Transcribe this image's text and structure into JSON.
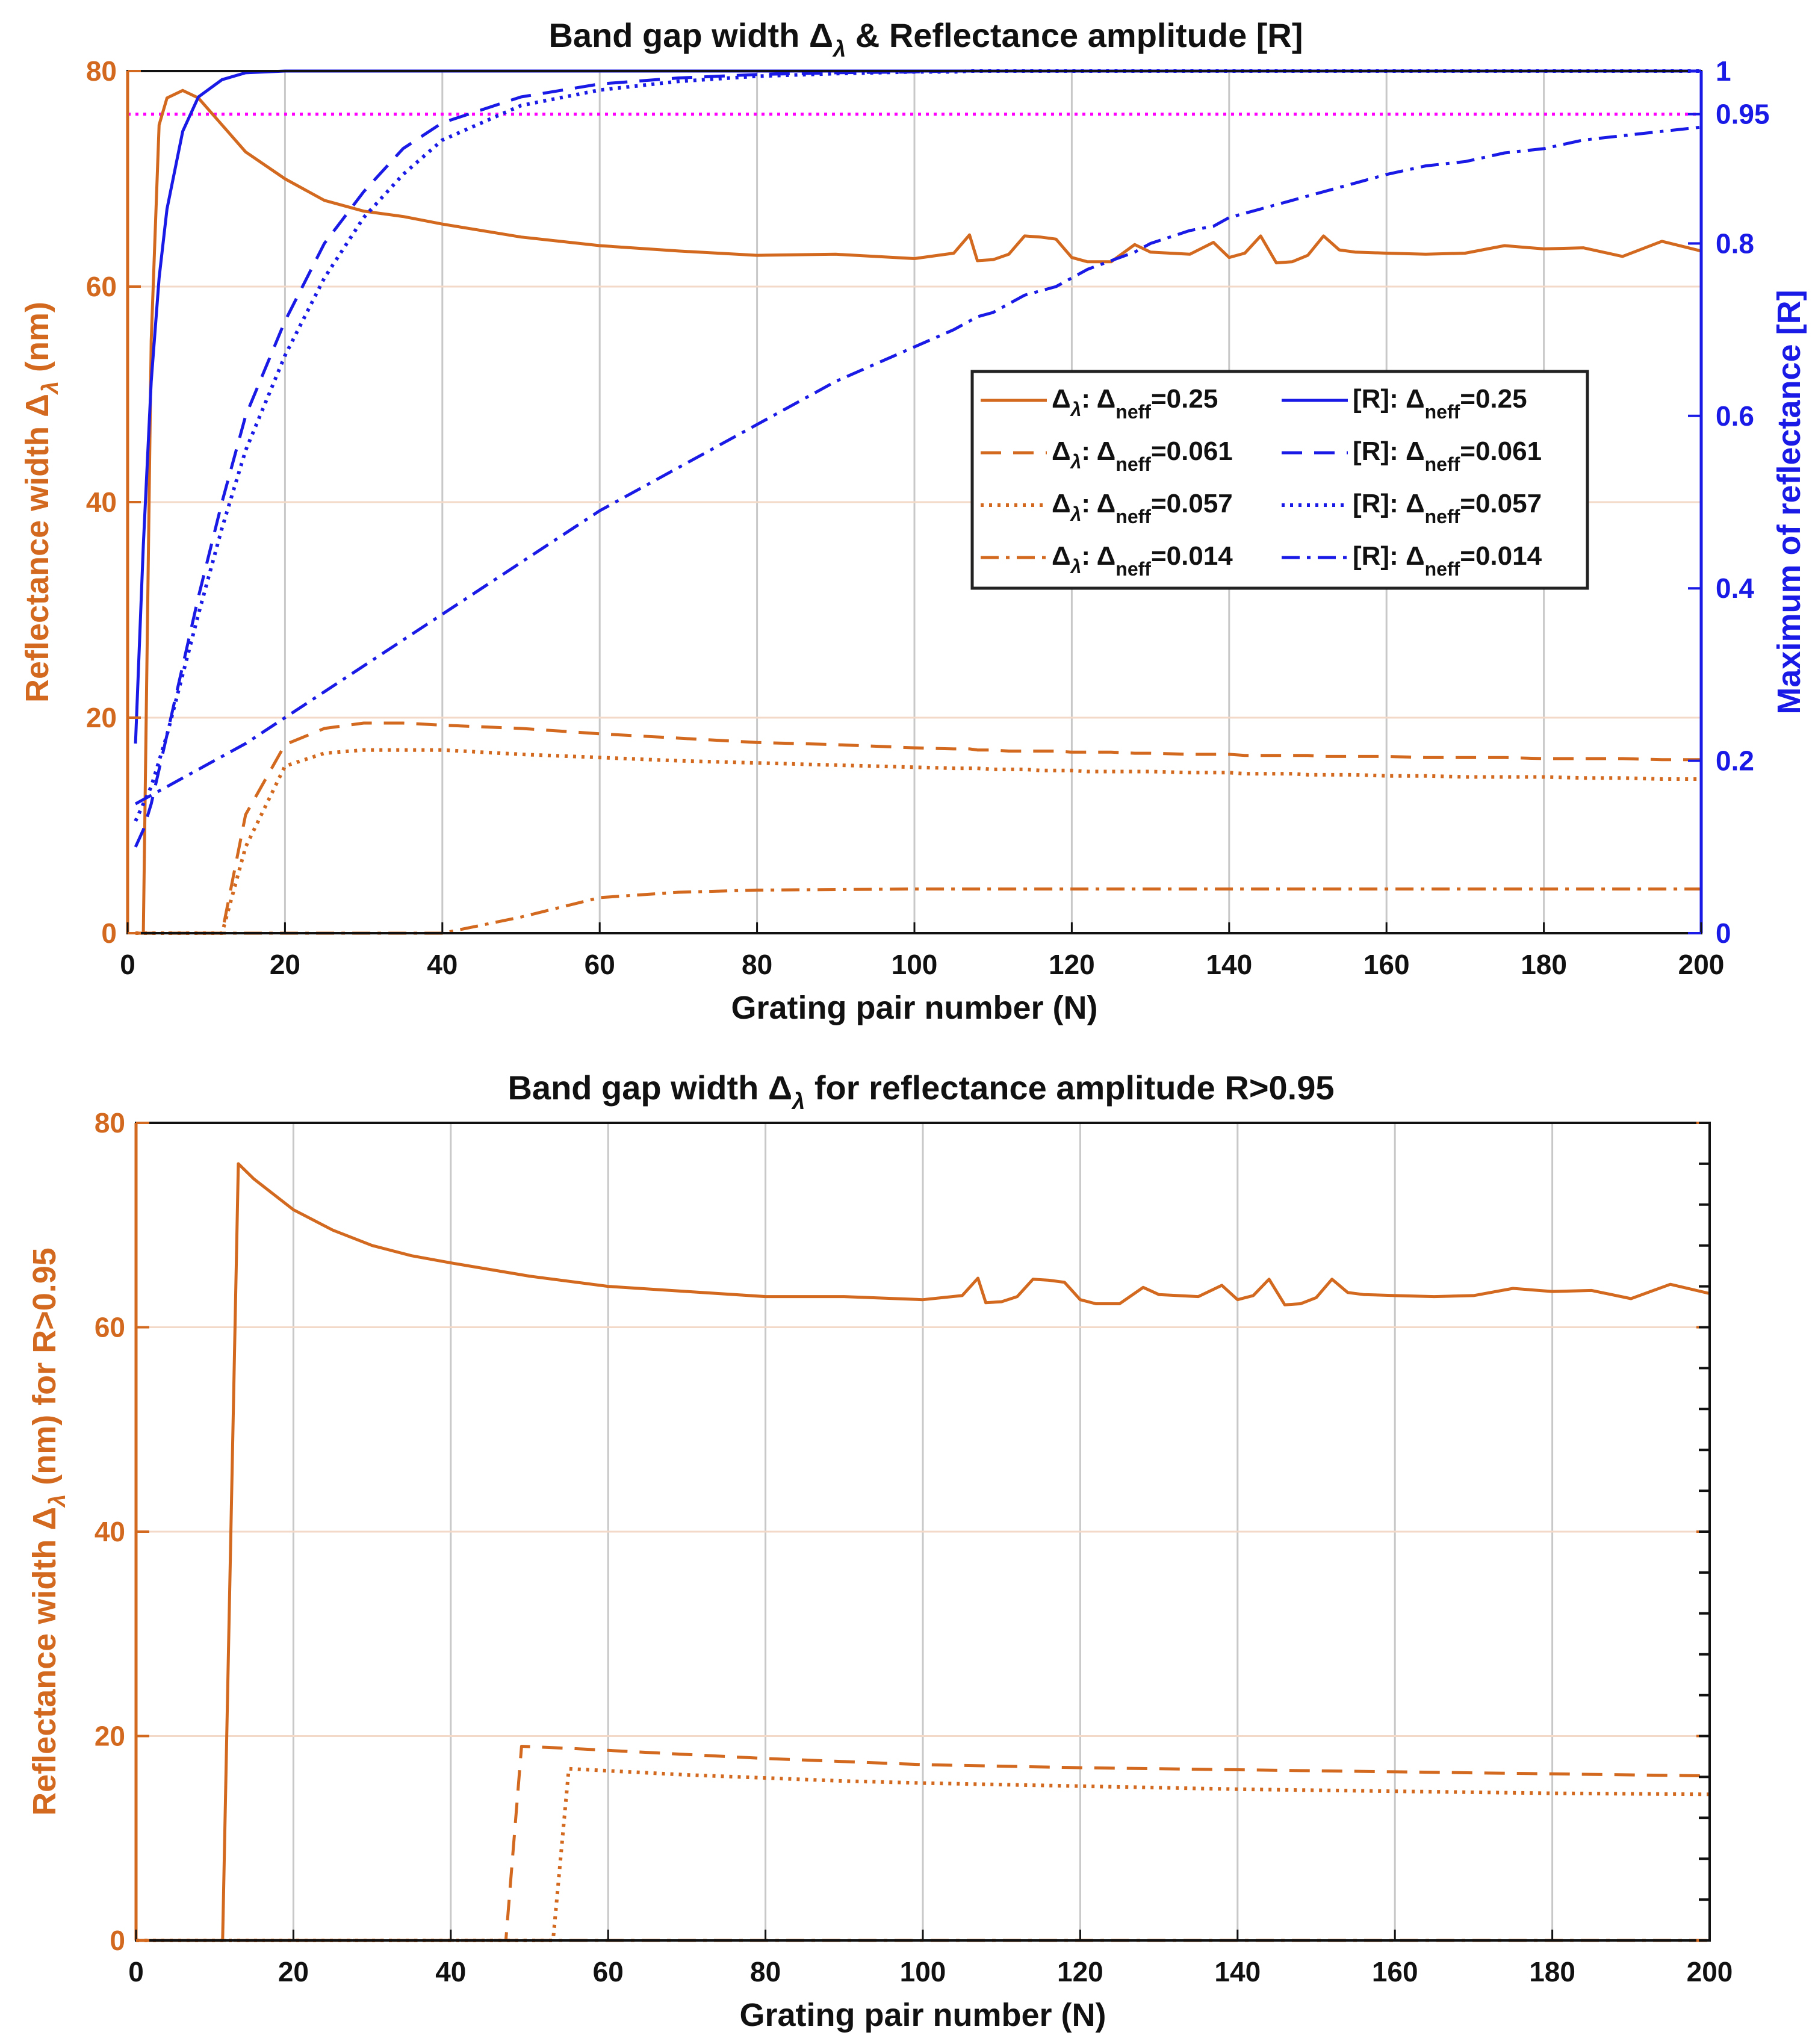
{
  "colors": {
    "orange": "#d2691e",
    "blue": "#1a1ae6",
    "magenta": "#ff00ff",
    "grid": "#c8c8c8",
    "gridH": "#f2d9c8"
  },
  "chart_data": [
    {
      "type": "line",
      "title_prefix": "Band gap width ",
      "title_symbol": "Δ",
      "title_sub": "λ",
      "title_suffix": " & Reflectance amplitude [R]",
      "xlabel": "Grating pair number (N)",
      "ylabel_left_prefix": "Reflectance width ",
      "ylabel_left_symbol": "Δ",
      "ylabel_left_sub": "λ",
      "ylabel_left_suffix": " (nm)",
      "ylabel_right": "Maximum of reflectance [R]",
      "xlim": [
        0,
        200
      ],
      "ylim_left": [
        0,
        80
      ],
      "ylim_right": [
        0,
        1
      ],
      "xticks": [
        "0",
        "20",
        "40",
        "60",
        "80",
        "100",
        "120",
        "140",
        "160",
        "180",
        "200"
      ],
      "yticks_left": [
        "0",
        "20",
        "40",
        "60",
        "80"
      ],
      "yticks_right": [
        "0",
        "0.2",
        "0.4",
        "0.6",
        "0.8",
        "0.95",
        "1"
      ],
      "threshold_R": 0.95,
      "x": [
        1,
        2,
        3,
        4,
        5,
        7,
        9,
        12,
        15,
        20,
        25,
        30,
        35,
        40,
        50,
        60,
        70,
        80,
        90,
        100,
        105,
        107,
        108,
        110,
        112,
        114,
        116,
        118,
        120,
        122,
        125,
        128,
        130,
        135,
        138,
        140,
        142,
        144,
        146,
        148,
        150,
        152,
        154,
        156,
        160,
        165,
        170,
        175,
        180,
        185,
        190,
        195,
        200
      ],
      "series": [
        {
          "name": "Δλ: Δneff=0.25",
          "axis": "left",
          "style": "solid",
          "color": "#d2691e",
          "values": [
            0,
            0,
            55,
            75,
            77.5,
            78.2,
            77.5,
            75,
            72.5,
            70,
            68,
            67,
            66.5,
            65.8,
            64.6,
            63.8,
            63.3,
            62.9,
            63,
            62.6,
            63.1,
            64.8,
            62.4,
            62.5,
            63,
            64.7,
            64.6,
            64.4,
            62.7,
            62.3,
            62.3,
            63.9,
            63.2,
            63,
            64.1,
            62.7,
            63.1,
            64.7,
            62.2,
            62.3,
            62.9,
            64.7,
            63.4,
            63.2,
            63.1,
            63,
            63.1,
            63.8,
            63.5,
            63.6,
            62.8,
            64.2,
            63.3
          ]
        },
        {
          "name": "Δλ: Δneff=0.061",
          "axis": "left",
          "style": "dashed",
          "color": "#d2691e",
          "values": [
            0,
            0,
            0,
            0,
            0,
            0,
            0,
            0,
            11,
            17.5,
            19,
            19.5,
            19.5,
            19.3,
            19,
            18.5,
            18.1,
            17.7,
            17.5,
            17.2,
            17.1,
            17.1,
            17,
            17,
            16.9,
            16.9,
            16.9,
            16.9,
            16.8,
            16.8,
            16.8,
            16.7,
            16.7,
            16.6,
            16.6,
            16.6,
            16.5,
            16.5,
            16.5,
            16.5,
            16.5,
            16.4,
            16.4,
            16.4,
            16.4,
            16.3,
            16.3,
            16.3,
            16.2,
            16.2,
            16.2,
            16.1,
            16.1
          ]
        },
        {
          "name": "Δλ: Δneff=0.057",
          "axis": "left",
          "style": "dotted",
          "color": "#d2691e",
          "values": [
            0,
            0,
            0,
            0,
            0,
            0,
            0,
            0,
            8,
            15.5,
            16.7,
            17,
            17,
            17,
            16.6,
            16.3,
            16,
            15.8,
            15.6,
            15.4,
            15.3,
            15.3,
            15.3,
            15.2,
            15.2,
            15.2,
            15.1,
            15.1,
            15.1,
            15,
            15,
            15,
            15,
            14.9,
            14.9,
            14.9,
            14.8,
            14.8,
            14.8,
            14.8,
            14.7,
            14.7,
            14.7,
            14.7,
            14.6,
            14.6,
            14.5,
            14.5,
            14.5,
            14.4,
            14.4,
            14.3,
            14.3
          ]
        },
        {
          "name": "Δλ: Δneff=0.014",
          "axis": "left",
          "style": "dashdot",
          "color": "#d2691e",
          "values": [
            0,
            0,
            0,
            0,
            0,
            0,
            0,
            0,
            0,
            0,
            0,
            0,
            0,
            0,
            1.5,
            3.3,
            3.8,
            4,
            4.05,
            4.1,
            4.1,
            4.1,
            4.1,
            4.1,
            4.1,
            4.1,
            4.1,
            4.1,
            4.1,
            4.1,
            4.1,
            4.1,
            4.1,
            4.1,
            4.1,
            4.1,
            4.1,
            4.1,
            4.1,
            4.1,
            4.1,
            4.1,
            4.1,
            4.1,
            4.1,
            4.1,
            4.1,
            4.1,
            4.1,
            4.1,
            4.1,
            4.1,
            4.1
          ]
        },
        {
          "name": "[R]: Δneff=0.25",
          "axis": "right",
          "style": "solid",
          "color": "#1a1ae6",
          "values": [
            0.22,
            0.45,
            0.64,
            0.76,
            0.84,
            0.93,
            0.97,
            0.99,
            0.998,
            1,
            1,
            1,
            1,
            1,
            1,
            1,
            1,
            1,
            1,
            1,
            1,
            1,
            1,
            1,
            1,
            1,
            1,
            1,
            1,
            1,
            1,
            1,
            1,
            1,
            1,
            1,
            1,
            1,
            1,
            1,
            1,
            1,
            1,
            1,
            1,
            1,
            1,
            1,
            1,
            1,
            1,
            1,
            1
          ]
        },
        {
          "name": "[R]: Δneff=0.061",
          "axis": "right",
          "style": "dashed",
          "color": "#1a1ae6",
          "values": [
            0.1,
            0.12,
            0.15,
            0.19,
            0.23,
            0.31,
            0.39,
            0.5,
            0.6,
            0.71,
            0.8,
            0.86,
            0.91,
            0.94,
            0.97,
            0.985,
            0.992,
            0.996,
            0.998,
            0.999,
            1,
            1,
            1,
            1,
            1,
            1,
            1,
            1,
            1,
            1,
            1,
            1,
            1,
            1,
            1,
            1,
            1,
            1,
            1,
            1,
            1,
            1,
            1,
            1,
            1,
            1,
            1,
            1,
            1,
            1,
            1,
            1,
            1
          ]
        },
        {
          "name": "[R]: Δneff=0.057",
          "axis": "right",
          "style": "dotted",
          "color": "#1a1ae6",
          "values": [
            0.13,
            0.15,
            0.17,
            0.2,
            0.23,
            0.3,
            0.37,
            0.47,
            0.56,
            0.67,
            0.76,
            0.83,
            0.88,
            0.92,
            0.96,
            0.978,
            0.988,
            0.994,
            0.997,
            0.999,
            0.999,
            1,
            1,
            1,
            1,
            1,
            1,
            1,
            1,
            1,
            1,
            1,
            1,
            1,
            1,
            1,
            1,
            1,
            1,
            1,
            1,
            1,
            1,
            1,
            1,
            1,
            1,
            1,
            1,
            1,
            1,
            1,
            1
          ]
        },
        {
          "name": "[R]: Δneff=0.014",
          "axis": "right",
          "style": "dashdot",
          "color": "#1a1ae6",
          "values": [
            0.15,
            0.155,
            0.16,
            0.165,
            0.17,
            0.18,
            0.19,
            0.205,
            0.22,
            0.25,
            0.28,
            0.31,
            0.34,
            0.37,
            0.43,
            0.49,
            0.54,
            0.59,
            0.64,
            0.68,
            0.7,
            0.71,
            0.715,
            0.72,
            0.73,
            0.74,
            0.745,
            0.75,
            0.76,
            0.77,
            0.78,
            0.79,
            0.8,
            0.815,
            0.82,
            0.83,
            0.835,
            0.84,
            0.845,
            0.85,
            0.855,
            0.86,
            0.865,
            0.87,
            0.88,
            0.89,
            0.895,
            0.905,
            0.91,
            0.92,
            0.925,
            0.93,
            0.935
          ]
        }
      ],
      "legend": {
        "position": "center-right",
        "entries": [
          {
            "label_left": "Δ",
            "label_sub": "λ",
            "label_mid": ": Δ",
            "label_sub2": "neff",
            "label_value": "=0.25",
            "color": "#d2691e",
            "style": "solid"
          },
          {
            "label_left": "[R]: Δ",
            "label_sub2": "neff",
            "label_value": "=0.25",
            "color": "#1a1ae6",
            "style": "solid"
          },
          {
            "label_left": "Δ",
            "label_sub": "λ",
            "label_mid": ": Δ",
            "label_sub2": "neff",
            "label_value": "=0.061",
            "color": "#d2691e",
            "style": "dashed"
          },
          {
            "label_left": "[R]: Δ",
            "label_sub2": "neff",
            "label_value": "=0.061",
            "color": "#1a1ae6",
            "style": "dashed"
          },
          {
            "label_left": "Δ",
            "label_sub": "λ",
            "label_mid": ": Δ",
            "label_sub2": "neff",
            "label_value": "=0.057",
            "color": "#d2691e",
            "style": "dotted"
          },
          {
            "label_left": "[R]: Δ",
            "label_sub2": "neff",
            "label_value": "=0.057",
            "color": "#1a1ae6",
            "style": "dotted"
          },
          {
            "label_left": "Δ",
            "label_sub": "λ",
            "label_mid": ": Δ",
            "label_sub2": "neff",
            "label_value": "=0.014",
            "color": "#d2691e",
            "style": "dashdot"
          },
          {
            "label_left": "[R]: Δ",
            "label_sub2": "neff",
            "label_value": "=0.014",
            "color": "#1a1ae6",
            "style": "dashdot"
          }
        ]
      }
    },
    {
      "type": "line",
      "title_prefix": "Band gap width ",
      "title_symbol": "Δ",
      "title_sub": "λ",
      "title_suffix": " for reflectance amplitude R>0.95",
      "xlabel": "Grating pair number (N)",
      "ylabel_left_prefix": "Reflectance width ",
      "ylabel_left_symbol": "Δ",
      "ylabel_left_sub": "λ",
      "ylabel_left_suffix": " (nm) for R>0.95",
      "xlim": [
        0,
        200
      ],
      "ylim_left": [
        0,
        80
      ],
      "xticks": [
        "0",
        "20",
        "40",
        "60",
        "80",
        "100",
        "120",
        "140",
        "160",
        "180",
        "200"
      ],
      "yticks_left": [
        "0",
        "20",
        "40",
        "60",
        "80"
      ],
      "series": [
        {
          "name": "Δλ: Δneff=0.25 (R>0.95)",
          "style": "solid",
          "color": "#d2691e",
          "x": [
            0,
            11,
            13,
            15,
            20,
            25,
            30,
            35,
            40,
            50,
            60,
            70,
            80,
            90,
            100,
            105,
            107,
            108,
            110,
            112,
            114,
            116,
            118,
            120,
            122,
            125,
            128,
            130,
            135,
            138,
            140,
            142,
            144,
            146,
            148,
            150,
            152,
            154,
            156,
            160,
            165,
            170,
            175,
            180,
            185,
            190,
            195,
            200
          ],
          "values": [
            0,
            0,
            76,
            74.5,
            71.5,
            69.5,
            68,
            67,
            66.3,
            65,
            64,
            63.5,
            63,
            63,
            62.7,
            63.1,
            64.8,
            62.4,
            62.5,
            63,
            64.7,
            64.6,
            64.4,
            62.7,
            62.3,
            62.3,
            63.9,
            63.2,
            63,
            64.1,
            62.7,
            63.1,
            64.7,
            62.2,
            62.3,
            62.9,
            64.7,
            63.4,
            63.2,
            63.1,
            63,
            63.1,
            63.8,
            63.5,
            63.6,
            62.8,
            64.2,
            63.3
          ]
        },
        {
          "name": "Δλ: Δneff=0.061 (R>0.95)",
          "style": "dashed",
          "color": "#d2691e",
          "x": [
            0,
            47,
            49,
            55,
            60,
            70,
            80,
            90,
            100,
            120,
            140,
            160,
            180,
            200
          ],
          "values": [
            0,
            0,
            19,
            18.8,
            18.6,
            18.2,
            17.8,
            17.5,
            17.2,
            16.9,
            16.7,
            16.5,
            16.3,
            16.1
          ]
        },
        {
          "name": "Δλ: Δneff=0.057 (R>0.95)",
          "style": "dotted",
          "color": "#d2691e",
          "x": [
            0,
            53,
            55,
            60,
            70,
            80,
            90,
            100,
            120,
            140,
            160,
            180,
            200
          ],
          "values": [
            0,
            0,
            16.8,
            16.6,
            16.2,
            15.9,
            15.6,
            15.4,
            15.1,
            14.8,
            14.6,
            14.4,
            14.3
          ]
        },
        {
          "name": "Δλ: Δneff=0.014 (R>0.95)",
          "style": "dashdot",
          "color": "#d2691e",
          "x": [
            0,
            200
          ],
          "values": [
            0,
            0
          ]
        }
      ]
    }
  ]
}
